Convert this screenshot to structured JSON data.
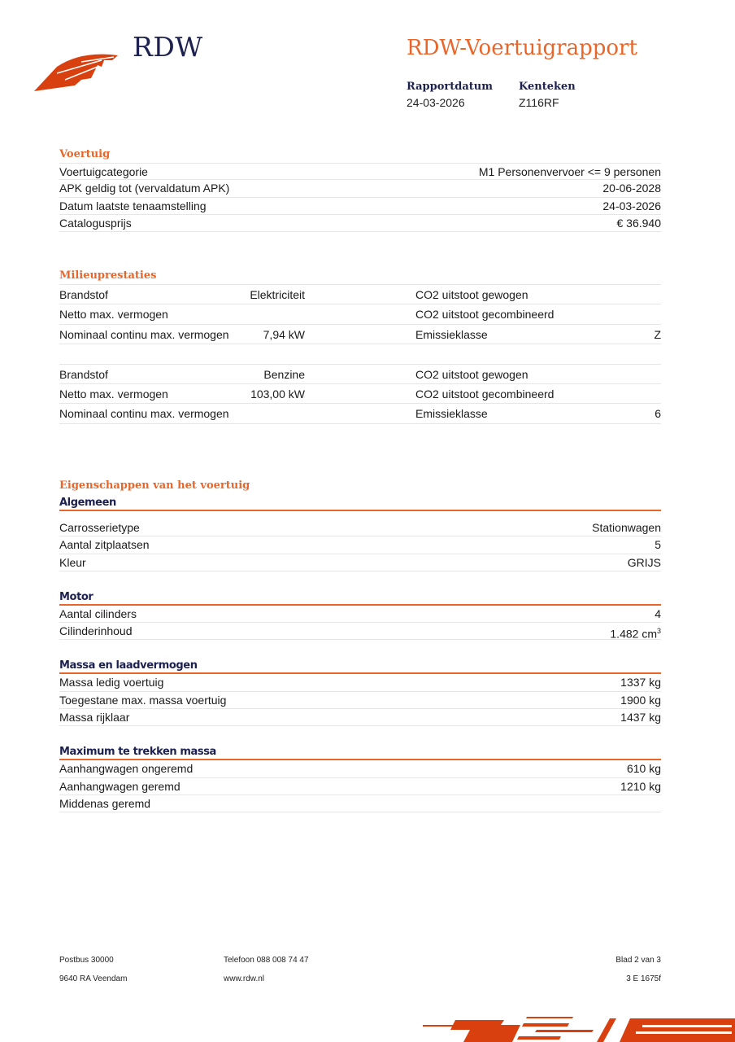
{
  "header": {
    "logo_text": "RDW",
    "title": "RDW-Voertuigrapport",
    "rapportdatum_label": "Rapportdatum",
    "rapportdatum": "24-03-2026",
    "kenteken_label": "Kenteken",
    "kenteken": "Z116RF"
  },
  "voertuig": {
    "title": "Voertuig",
    "rows": [
      {
        "label": "Voertuigcategorie",
        "value": "M1 Personenvervoer <= 9 personen"
      },
      {
        "label": "APK geldig tot (vervaldatum APK)",
        "value": "20-06-2028"
      },
      {
        "label": "Datum laatste tenaamstelling",
        "value": "24-03-2026"
      },
      {
        "label": "Catalogusprijs",
        "value": "€ 36.940"
      }
    ]
  },
  "milieu": {
    "title": "Milieuprestaties",
    "tables": [
      {
        "rows": [
          {
            "l1": "Brandstof",
            "v1": "Elektriciteit",
            "l2": "CO2 uitstoot gewogen",
            "v2": ""
          },
          {
            "l1": "Netto max. vermogen",
            "v1": "",
            "l2": "CO2 uitstoot gecombineerd",
            "v2": ""
          },
          {
            "l1": "Nominaal continu max. vermogen",
            "v1": "7,94 kW",
            "l2": "Emissieklasse",
            "v2": "Z"
          }
        ]
      },
      {
        "rows": [
          {
            "l1": "Brandstof",
            "v1": "Benzine",
            "l2": "CO2 uitstoot gewogen",
            "v2": ""
          },
          {
            "l1": "Netto max. vermogen",
            "v1": "103,00 kW",
            "l2": "CO2 uitstoot gecombineerd",
            "v2": ""
          },
          {
            "l1": "Nominaal continu max. vermogen",
            "v1": "",
            "l2": "Emissieklasse",
            "v2": "6"
          }
        ]
      }
    ]
  },
  "eigenschappen": {
    "title": "Eigenschappen van het voertuig",
    "groups": [
      {
        "title": "Algemeen",
        "rows": [
          {
            "label": "Carrosserietype",
            "value": "Stationwagen"
          },
          {
            "label": "Aantal zitplaatsen",
            "value": "5"
          },
          {
            "label": "Kleur",
            "value": "GRIJS"
          }
        ]
      },
      {
        "title": "Motor",
        "rows": [
          {
            "label": "Aantal cilinders",
            "value": "4"
          },
          {
            "label": "Cilinderinhoud",
            "value": "1.482 cm",
            "sup": "3"
          }
        ]
      },
      {
        "title": "Massa en laadvermogen",
        "rows": [
          {
            "label": "Massa ledig voertuig",
            "value": "1337 kg"
          },
          {
            "label": "Toegestane max. massa voertuig",
            "value": "1900 kg"
          },
          {
            "label": "Massa rijklaar",
            "value": "1437 kg"
          }
        ]
      },
      {
        "title": "Maximum te trekken massa",
        "rows": [
          {
            "label": "Aanhangwagen ongeremd",
            "value": "610 kg"
          },
          {
            "label": "Aanhangwagen geremd",
            "value": "1210 kg"
          },
          {
            "label": "Middenas geremd",
            "value": ""
          }
        ]
      }
    ]
  },
  "footer": {
    "postbus": "Postbus 30000",
    "adres": "9640 RA Veendam",
    "telefoon": "Telefoon 088 008 74 47",
    "website": "www.rdw.nl",
    "blad": "Blad 2 van 3",
    "code": "3 E 1675f"
  },
  "colors": {
    "accent": "#e8662a",
    "navy": "#1d2150",
    "logo": "#d9400f"
  }
}
